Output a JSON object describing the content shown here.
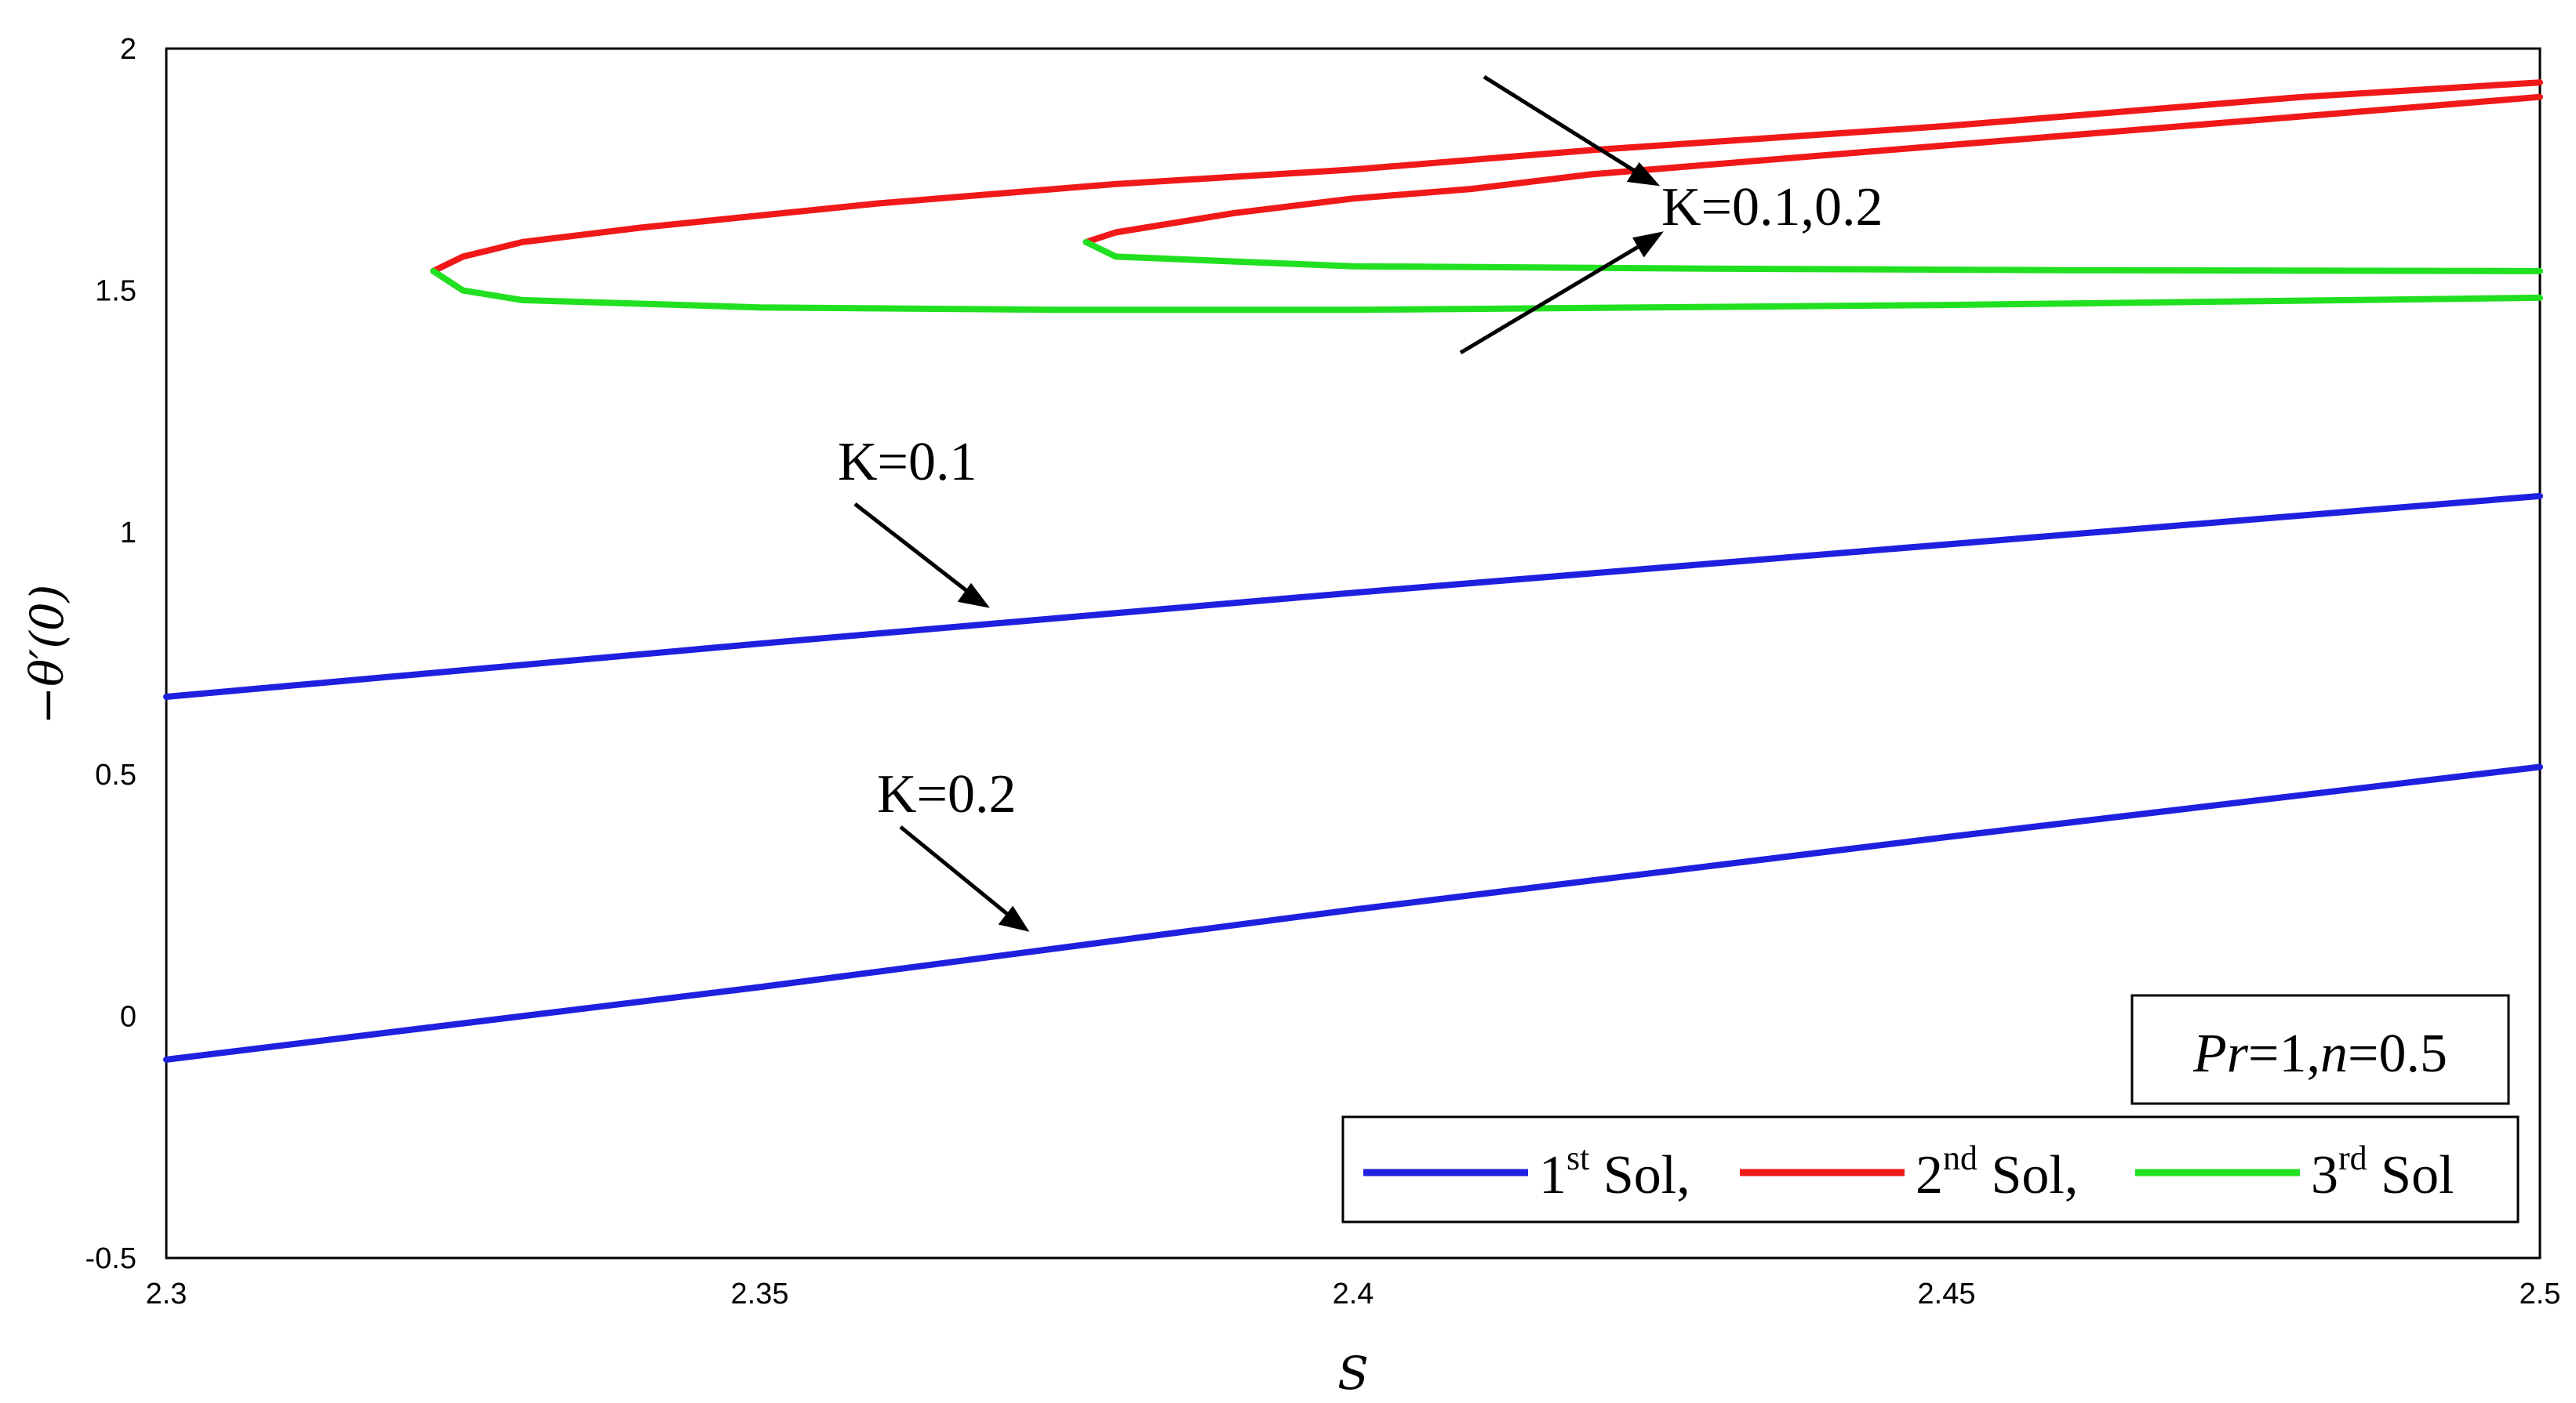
{
  "chart_data": {
    "type": "line",
    "title": "",
    "xlabel": "S",
    "ylabel": "−θ′(0)",
    "xlim": [
      2.3,
      2.5
    ],
    "ylim": [
      -0.5,
      2
    ],
    "xticks": [
      "2.3",
      "2.35",
      "2.4",
      "2.45",
      "2.5"
    ],
    "yticks": [
      "-0.5",
      "0",
      "0.5",
      "1",
      "1.5",
      "2"
    ],
    "grid": false,
    "legend_position": "bottom-right",
    "legend": [
      {
        "sup": "st",
        "pre": "1",
        "post": " Sol,",
        "color": "#1f1fe0"
      },
      {
        "sup": "nd",
        "pre": "2",
        "post": " Sol,",
        "color": "#f01818"
      },
      {
        "sup": "rd",
        "pre": "3",
        "post": " Sol",
        "color": "#20e020"
      }
    ],
    "parameter_box": {
      "pr_label": "Pr",
      "pr_value": "=1,",
      "n_label": "n",
      "n_value": "=0.5"
    },
    "annotations": [
      {
        "text": "K=0.1,0.2"
      },
      {
        "text": "K=0.1"
      },
      {
        "text": "K=0.2"
      }
    ],
    "series": [
      {
        "solution": "1st",
        "K": 0.1,
        "color": "#1f1fe0",
        "points": [
          [
            2.3,
            0.66
          ],
          [
            2.35,
            0.77
          ],
          [
            2.4,
            0.875
          ],
          [
            2.45,
            0.975
          ],
          [
            2.5,
            1.075
          ]
        ]
      },
      {
        "solution": "1st",
        "K": 0.2,
        "color": "#1f1fe0",
        "points": [
          [
            2.3,
            -0.09
          ],
          [
            2.35,
            0.06
          ],
          [
            2.4,
            0.22
          ],
          [
            2.45,
            0.37
          ],
          [
            2.5,
            0.515
          ]
        ]
      },
      {
        "solution": "2nd",
        "K": 0.1,
        "color": "#f01818",
        "points": [
          [
            2.3225,
            1.54
          ],
          [
            2.325,
            1.57
          ],
          [
            2.33,
            1.6
          ],
          [
            2.34,
            1.63
          ],
          [
            2.36,
            1.68
          ],
          [
            2.38,
            1.72
          ],
          [
            2.4,
            1.75
          ],
          [
            2.42,
            1.79
          ],
          [
            2.45,
            1.84
          ],
          [
            2.48,
            1.9
          ],
          [
            2.5,
            1.93
          ]
        ]
      },
      {
        "solution": "3rd",
        "K": 0.1,
        "color": "#20e020",
        "points": [
          [
            2.3225,
            1.54
          ],
          [
            2.325,
            1.5
          ],
          [
            2.33,
            1.48
          ],
          [
            2.35,
            1.465
          ],
          [
            2.375,
            1.46
          ],
          [
            2.4,
            1.46
          ],
          [
            2.45,
            1.47
          ],
          [
            2.5,
            1.485
          ]
        ]
      },
      {
        "solution": "2nd",
        "K": 0.2,
        "color": "#f01818",
        "points": [
          [
            2.3775,
            1.6
          ],
          [
            2.38,
            1.62
          ],
          [
            2.385,
            1.64
          ],
          [
            2.39,
            1.66
          ],
          [
            2.4,
            1.69
          ],
          [
            2.41,
            1.71
          ],
          [
            2.42,
            1.74
          ],
          [
            2.45,
            1.8
          ],
          [
            2.48,
            1.86
          ],
          [
            2.5,
            1.9
          ]
        ]
      },
      {
        "solution": "3rd",
        "K": 0.2,
        "color": "#20e020",
        "points": [
          [
            2.3775,
            1.6
          ],
          [
            2.38,
            1.57
          ],
          [
            2.39,
            1.56
          ],
          [
            2.4,
            1.55
          ],
          [
            2.43,
            1.545
          ],
          [
            2.46,
            1.542
          ],
          [
            2.5,
            1.54
          ]
        ]
      }
    ]
  }
}
